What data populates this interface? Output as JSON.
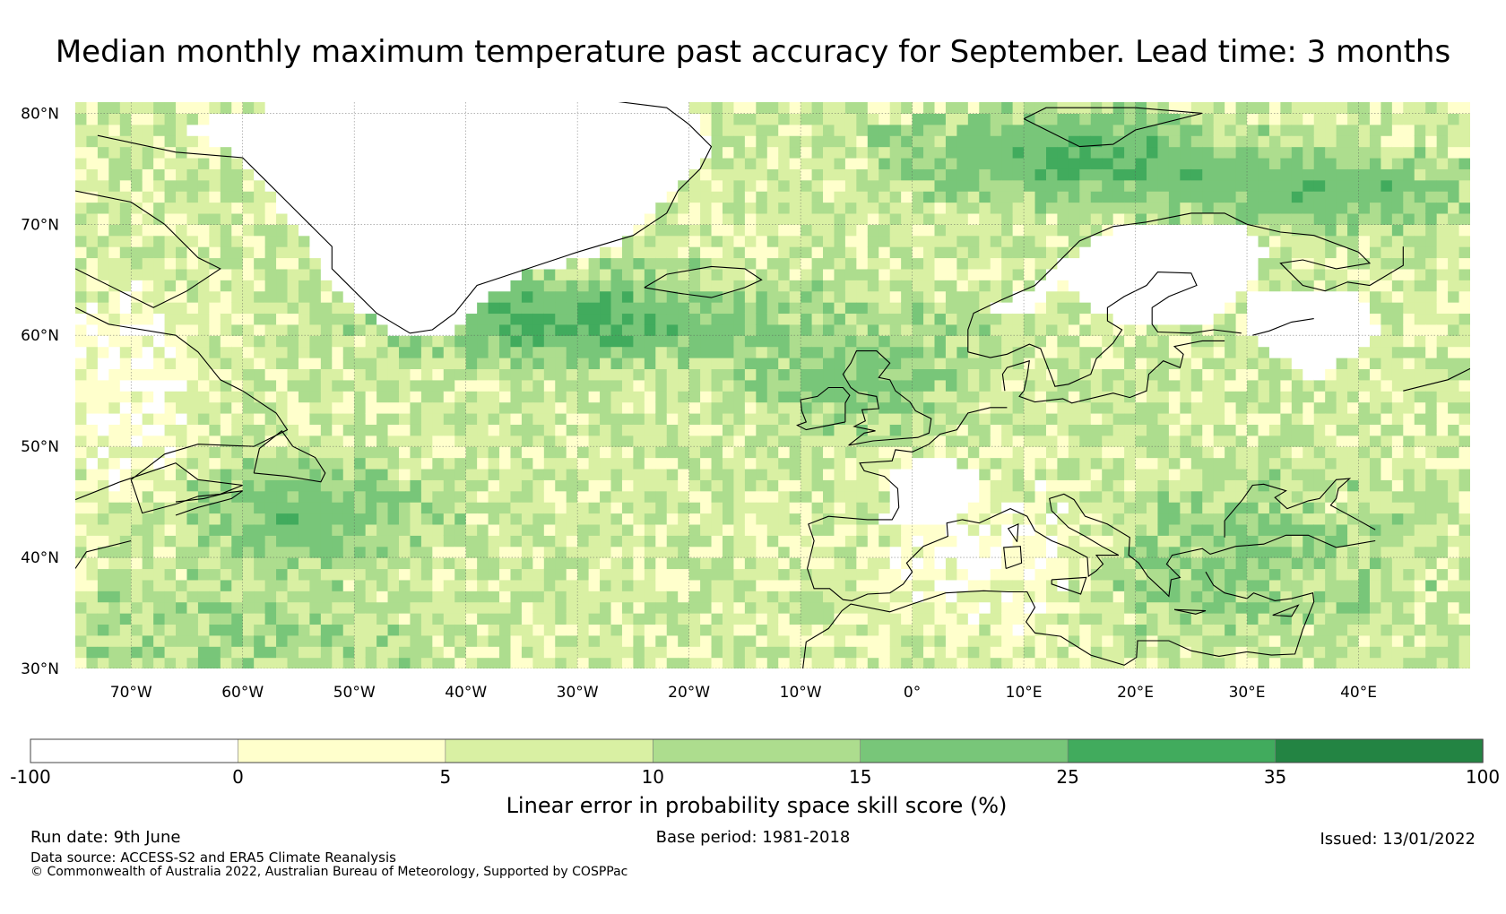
{
  "title": "Median monthly maximum temperature past accuracy for September. Lead time: 3 months",
  "map": {
    "lat_range": [
      30,
      81
    ],
    "lon_range": [
      -75,
      50
    ],
    "lat_ticks": [
      "80°N",
      "70°N",
      "60°N",
      "50°N",
      "40°N",
      "30°N"
    ],
    "lat_values": [
      80,
      70,
      60,
      50,
      40,
      30
    ],
    "lon_ticks": [
      "70°W",
      "60°W",
      "50°W",
      "40°W",
      "30°W",
      "20°W",
      "10°W",
      "0°",
      "10°E",
      "20°E",
      "30°E",
      "40°E"
    ],
    "lon_values": [
      -70,
      -60,
      -50,
      -40,
      -30,
      -20,
      -10,
      0,
      10,
      20,
      30,
      40
    ],
    "grid": true
  },
  "colorbar": {
    "label": "Linear error in probability space skill score (%)",
    "ticks": [
      "-100",
      "0",
      "5",
      "10",
      "15",
      "25",
      "35",
      "100"
    ],
    "colors": [
      "#ffffff",
      "#ffffcc",
      "#d9f0a3",
      "#addd8e",
      "#78c679",
      "#41ab5d",
      "#238443"
    ],
    "bins": [
      [
        -100,
        0
      ],
      [
        0,
        5
      ],
      [
        5,
        10
      ],
      [
        10,
        15
      ],
      [
        15,
        25
      ],
      [
        25,
        35
      ],
      [
        35,
        100
      ]
    ]
  },
  "footer": {
    "run_date": "Run date: 9th June",
    "base_period": "Base period: 1981-2018",
    "issued": "Issued: 13/01/2022",
    "data_source": "Data source: ACCESS-S2 and ERA5 Climate Reanalysis",
    "copyright": "© Commonwealth of Australia 2022, Australian Bureau of Meteorology, Supported by COSPPac"
  }
}
